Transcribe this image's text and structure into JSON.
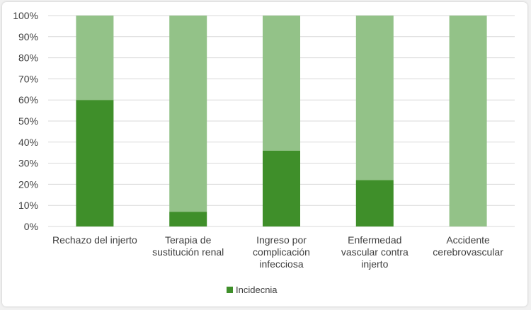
{
  "chart_data": {
    "type": "bar",
    "stacked": true,
    "percent_stacked": true,
    "categories": [
      [
        "Rechazo del injerto"
      ],
      [
        "Terapia de",
        "sustitución renal"
      ],
      [
        "Ingreso por",
        "complicación",
        "infecciosa"
      ],
      [
        "Enfermedad",
        "vascular contra",
        "injerto"
      ],
      [
        "Accidente",
        "cerebrovascular"
      ]
    ],
    "series": [
      {
        "name": "Incidecnia",
        "values": [
          60,
          7,
          36,
          22,
          0
        ],
        "color": "#3f8f2a"
      },
      {
        "name": "",
        "values": [
          40,
          93,
          64,
          78,
          100
        ],
        "color": "#93c288"
      }
    ],
    "y_ticks": [
      "0%",
      "10%",
      "20%",
      "30%",
      "40%",
      "50%",
      "60%",
      "70%",
      "80%",
      "90%",
      "100%"
    ],
    "ylim": [
      0,
      100
    ],
    "grid": true,
    "legend_position": "bottom",
    "legend": [
      {
        "label": "Incidecnia",
        "color": "#3f8f2a"
      }
    ],
    "colors": {
      "grid": "#d9d9d9",
      "text": "#404040"
    }
  }
}
